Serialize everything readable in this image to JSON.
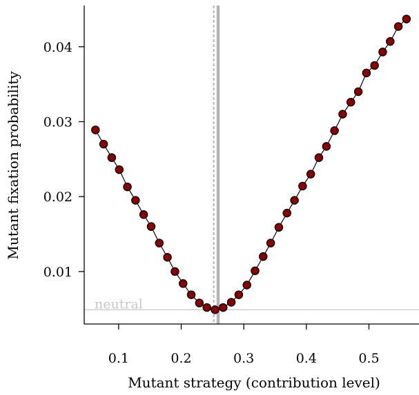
{
  "chart_data": {
    "type": "line",
    "xlabel": "Mutant strategy (contribution level)",
    "ylabel": "Mutant fixation probability",
    "xlim": [
      0.045,
      0.58
    ],
    "ylim": [
      0.003,
      0.0455
    ],
    "x_ticks": [
      0.1,
      0.2,
      0.3,
      0.4,
      0.5
    ],
    "x_tick_labels": [
      "0.1",
      "0.2",
      "0.3",
      "0.4",
      "0.5"
    ],
    "y_ticks": [
      0.01,
      0.02,
      0.03,
      0.04
    ],
    "y_tick_labels": [
      "0.01",
      "0.02",
      "0.03",
      "0.04"
    ],
    "neutral": {
      "label": "neutral",
      "value": 0.0049,
      "color": "#c8c8c8"
    },
    "reference_lines": {
      "dashed_x": 0.252,
      "solid_x": 0.259,
      "color": "#b4b4b4"
    },
    "marker_color": "#8b0000",
    "line_color": "#000000",
    "series": [
      {
        "x": [
          0.063,
          0.076,
          0.089,
          0.101,
          0.114,
          0.127,
          0.14,
          0.152,
          0.165,
          0.178,
          0.19,
          0.203,
          0.216,
          0.229,
          0.241,
          0.254,
          0.267,
          0.28,
          0.292,
          0.305,
          0.318,
          0.331,
          0.343,
          0.356,
          0.369,
          0.381,
          0.394,
          0.407,
          0.42,
          0.432,
          0.445,
          0.458,
          0.471,
          0.483,
          0.496,
          0.509,
          0.522,
          0.534,
          0.547,
          0.56
        ],
        "y": [
          0.0289,
          0.027,
          0.0252,
          0.0236,
          0.0213,
          0.0195,
          0.0176,
          0.016,
          0.0138,
          0.0119,
          0.01,
          0.0084,
          0.0069,
          0.0058,
          0.0052,
          0.0049,
          0.0052,
          0.0059,
          0.0069,
          0.0082,
          0.0101,
          0.012,
          0.0138,
          0.0159,
          0.0178,
          0.0195,
          0.0214,
          0.023,
          0.0252,
          0.0267,
          0.0288,
          0.031,
          0.0326,
          0.034,
          0.0365,
          0.0375,
          0.0393,
          0.0407,
          0.0427,
          0.0437
        ]
      }
    ]
  }
}
